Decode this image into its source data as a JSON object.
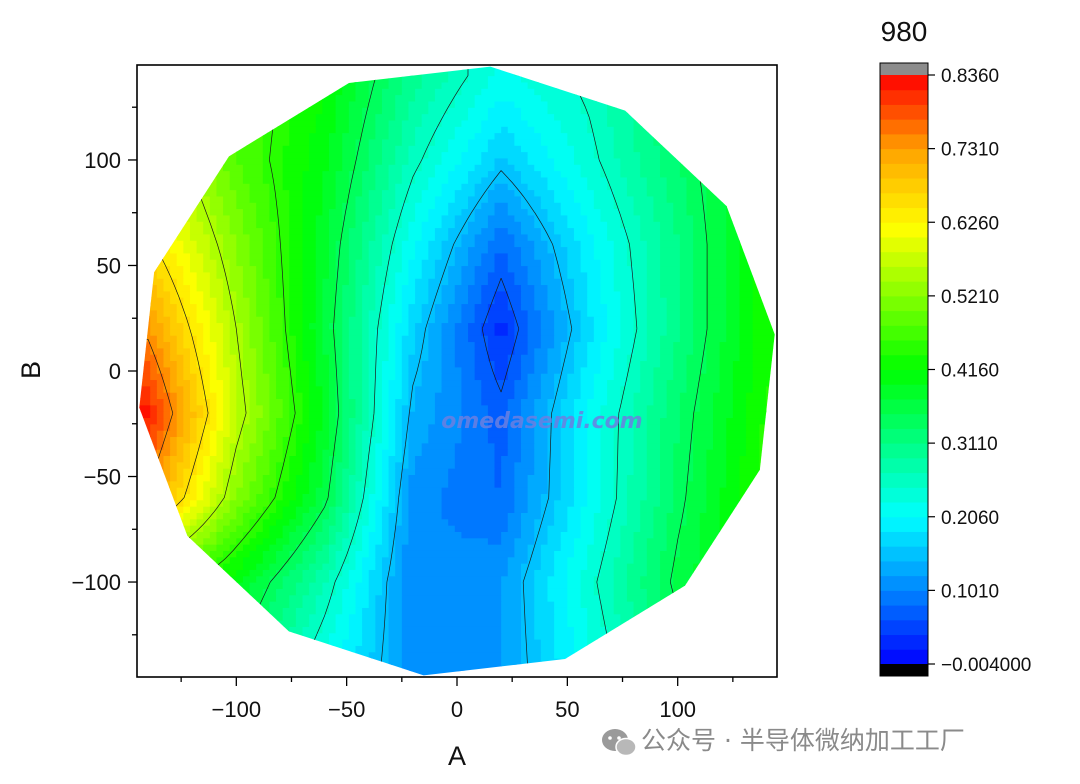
{
  "chart_data": {
    "type": "heatmap",
    "subtype": "filled-contour wafer map",
    "title": "",
    "xlabel": "A",
    "ylabel": "B",
    "xlim": [
      -145,
      145
    ],
    "ylim": [
      -145,
      145
    ],
    "x_ticks": [
      -100,
      -50,
      0,
      50,
      100
    ],
    "y_ticks": [
      100,
      50,
      0,
      -50,
      -100
    ],
    "colorbar": {
      "title": "980",
      "min": -0.004,
      "max": 0.836,
      "tick_labels": [
        "0.8360",
        "0.7310",
        "0.6260",
        "0.5210",
        "0.4160",
        "0.3110",
        "0.2060",
        "0.1010",
        "−0.004000"
      ],
      "tick_values": [
        0.836,
        0.731,
        0.626,
        0.521,
        0.416,
        0.311,
        0.206,
        0.101,
        -0.004
      ],
      "over_color": "#8c8c8c",
      "under_color": "#000000"
    },
    "wafer_radius": 145,
    "grid": [
      {
        "y": -140,
        "x": [
          -140,
          -100,
          -60,
          -20,
          20,
          60,
          100,
          140
        ],
        "values": [
          0.4,
          0.34,
          0.22,
          0.11,
          0.12,
          0.22,
          0.33,
          0.4
        ]
      },
      {
        "y": -100,
        "x": [
          -140,
          -100,
          -60,
          -20,
          20,
          60,
          100,
          140
        ],
        "values": [
          0.5,
          0.4,
          0.27,
          0.1,
          0.12,
          0.24,
          0.36,
          0.44
        ]
      },
      {
        "y": -60,
        "x": [
          -140,
          -100,
          -60,
          -20,
          20,
          60,
          100,
          140
        ],
        "values": [
          0.74,
          0.52,
          0.36,
          0.11,
          0.08,
          0.21,
          0.34,
          0.45
        ]
      },
      {
        "y": -20,
        "x": [
          -140,
          -100,
          -60,
          -20,
          20,
          60,
          100,
          140
        ],
        "values": [
          0.82,
          0.57,
          0.39,
          0.14,
          0.07,
          0.21,
          0.33,
          0.44
        ]
      },
      {
        "y": 20,
        "x": [
          -140,
          -100,
          -60,
          -20,
          20,
          60,
          100,
          140
        ],
        "values": [
          0.74,
          0.55,
          0.37,
          0.17,
          0.03,
          0.18,
          0.31,
          0.43
        ]
      },
      {
        "y": 60,
        "x": [
          -140,
          -100,
          -60,
          -20,
          20,
          60,
          100,
          140
        ],
        "values": [
          0.66,
          0.52,
          0.38,
          0.21,
          0.08,
          0.2,
          0.31,
          0.43
        ]
      },
      {
        "y": 100,
        "x": [
          -140,
          -100,
          -60,
          -20,
          20,
          60,
          100,
          140
        ],
        "values": [
          0.6,
          0.48,
          0.4,
          0.26,
          0.16,
          0.24,
          0.33,
          0.42
        ]
      },
      {
        "y": 140,
        "x": [
          -140,
          -100,
          -60,
          -20,
          20,
          60,
          100,
          140
        ],
        "values": [
          0.55,
          0.48,
          0.42,
          0.3,
          0.22,
          0.26,
          0.34,
          0.42
        ]
      }
    ]
  },
  "colors": {
    "scale": [
      "#000000",
      "#0000ff",
      "#0080ff",
      "#00ffff",
      "#00ff00",
      "#80ff00",
      "#ffff00",
      "#ffa500",
      "#ff0000",
      "#8c8c8c"
    ]
  },
  "watermark": "omedasemi.com",
  "footer": {
    "icon": "wechat-icon",
    "text": "公众号 · 半导体微纳加工工厂"
  }
}
